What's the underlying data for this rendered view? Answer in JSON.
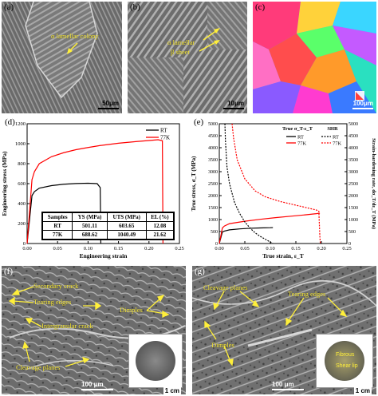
{
  "panels": {
    "a": {
      "label": "(a)",
      "annotation": "α lamellar colony",
      "scale": "50μm"
    },
    "b": {
      "label": "(b)",
      "annotation_1": "α lamellar",
      "annotation_2": "β sheet",
      "scale": "10μm"
    },
    "c": {
      "label": "(c)",
      "scale": "100μm"
    },
    "d": {
      "label": "(d)"
    },
    "e": {
      "label": "(e)"
    },
    "f": {
      "label": "(f)",
      "annotations": [
        "Secondary crack",
        "Tearing edges",
        "Dimples",
        "Intergranular crack",
        "Cleavage planes"
      ],
      "scale": "100 μm",
      "inset_scale": "1 cm"
    },
    "g": {
      "label": "(g)",
      "annotations": [
        "Cleavage planes",
        "Tearing edges",
        "Dimples"
      ],
      "scale": "100 μm",
      "inset_scale": "1 cm",
      "inset_labels": [
        "Fibrous",
        "Shear lip"
      ]
    }
  },
  "table": {
    "headers": [
      "Samples",
      "YS (MPa)",
      "UTS (MPa)",
      "EL (%)"
    ],
    "rows": [
      [
        "RT",
        "501.11",
        "603.65",
        "12.08"
      ],
      [
        "77K",
        "688.62",
        "1040.49",
        "21.62"
      ]
    ]
  },
  "chart_data": [
    {
      "type": "line",
      "xlabel": "Engineering strain",
      "ylabel": "Engineering stress (MPa)",
      "xlim": [
        0.0,
        0.25
      ],
      "ylim": [
        0,
        1200
      ],
      "xticks": [
        0.0,
        0.05,
        0.1,
        0.15,
        0.2,
        0.25
      ],
      "yticks": [
        0,
        200,
        400,
        600,
        800,
        1000,
        1200
      ],
      "legend_position": "top-right",
      "series": [
        {
          "name": "RT",
          "color": "#000000",
          "x": [
            0,
            0.008,
            0.012,
            0.02,
            0.04,
            0.06,
            0.08,
            0.1,
            0.115,
            0.12,
            0.121
          ],
          "y": [
            0,
            480,
            520,
            555,
            580,
            594,
            601,
            604,
            600,
            560,
            0
          ]
        },
        {
          "name": "77K",
          "color": "#ff0000",
          "x": [
            0,
            0.008,
            0.012,
            0.02,
            0.04,
            0.06,
            0.08,
            0.1,
            0.12,
            0.15,
            0.18,
            0.2,
            0.215,
            0.222,
            0.223
          ],
          "y": [
            0,
            640,
            720,
            800,
            870,
            910,
            940,
            962,
            982,
            1005,
            1022,
            1032,
            1040,
            1030,
            0
          ]
        }
      ]
    },
    {
      "type": "line",
      "xlabel": "True strain, ε_T",
      "ylabel": "True stress, σ_T (MPa)",
      "y2label": "Strain-hardening rate, dσ_T/dε_T (MPa)",
      "xlim": [
        0.0,
        0.25
      ],
      "ylim": [
        0,
        5000
      ],
      "y2lim": [
        0,
        5000
      ],
      "xticks": [
        0.0,
        0.05,
        0.1,
        0.15,
        0.2,
        0.25
      ],
      "yticks": [
        0,
        500,
        1000,
        1500,
        2000,
        2500,
        3000,
        3500,
        4000,
        4500,
        5000
      ],
      "legend_position": "top-right",
      "legend_groups": [
        "True σ_T-ε_T",
        "SHR"
      ],
      "series": [
        {
          "name": "RT",
          "group": "True σ_T-ε_T",
          "color": "#000000",
          "dash": false,
          "x": [
            0,
            0.006,
            0.01,
            0.02,
            0.04,
            0.06,
            0.08,
            0.1,
            0.105
          ],
          "y": [
            0,
            480,
            520,
            570,
            610,
            635,
            650,
            660,
            665
          ]
        },
        {
          "name": "77K",
          "group": "True σ_T-ε_T",
          "color": "#ff0000",
          "dash": false,
          "x": [
            0,
            0.006,
            0.01,
            0.02,
            0.05,
            0.08,
            0.11,
            0.14,
            0.17,
            0.19,
            0.197
          ],
          "y": [
            0,
            650,
            730,
            830,
            930,
            1010,
            1080,
            1140,
            1200,
            1245,
            1265
          ]
        },
        {
          "name": "RT",
          "group": "SHR",
          "color": "#000000",
          "dash": true,
          "x": [
            0.011,
            0.012,
            0.015,
            0.02,
            0.03,
            0.04,
            0.05,
            0.06,
            0.07,
            0.08,
            0.09,
            0.1,
            0.105
          ],
          "y": [
            5000,
            4300,
            3200,
            2500,
            1700,
            1250,
            900,
            650,
            450,
            300,
            180,
            60,
            0
          ]
        },
        {
          "name": "77K",
          "group": "SHR",
          "color": "#ff0000",
          "dash": true,
          "x": [
            0.025,
            0.028,
            0.035,
            0.05,
            0.07,
            0.09,
            0.12,
            0.15,
            0.18,
            0.19,
            0.195,
            0.197,
            0.198
          ],
          "y": [
            5000,
            4400,
            3500,
            2700,
            2200,
            1950,
            1750,
            1600,
            1450,
            1400,
            1350,
            300,
            0
          ]
        }
      ]
    }
  ]
}
